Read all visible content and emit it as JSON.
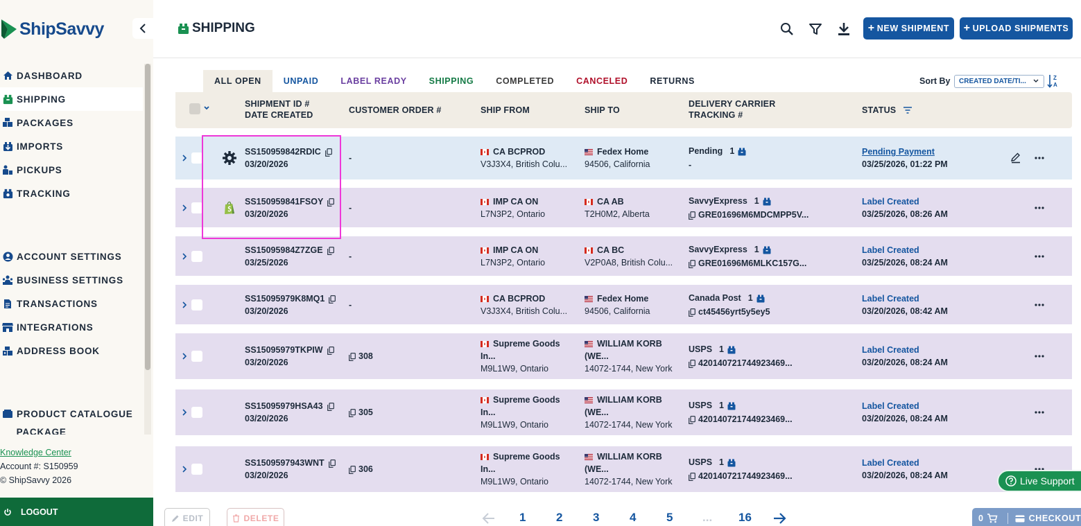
{
  "brand": {
    "name": "ShipSavvy"
  },
  "sidebar": {
    "items_top": [
      {
        "label": "DASHBOARD",
        "icon": "home-icon"
      },
      {
        "label": "SHIPPING",
        "icon": "shipping-box-icon",
        "active": true
      },
      {
        "label": "PACKAGES",
        "icon": "packages-icon"
      },
      {
        "label": "IMPORTS",
        "icon": "import-icon"
      },
      {
        "label": "PICKUPS",
        "icon": "pickup-icon"
      },
      {
        "label": "TRACKING",
        "icon": "tracking-icon"
      }
    ],
    "items_mid": [
      {
        "label": "ACCOUNT SETTINGS",
        "icon": "account-icon"
      },
      {
        "label": "BUSINESS SETTINGS",
        "icon": "business-icon"
      },
      {
        "label": "TRANSACTIONS",
        "icon": "document-icon"
      },
      {
        "label": "INTEGRATIONS",
        "icon": "store-icon"
      },
      {
        "label": "ADDRESS BOOK",
        "icon": "address-book-icon"
      }
    ],
    "items_bottom": [
      {
        "label": "PRODUCT CATALOGUE",
        "icon": "catalogue-icon"
      },
      {
        "label": "PACKAGE PREFERENCES",
        "icon": "preferences-icon"
      }
    ],
    "knowledge_center": "Knowledge Center",
    "account": "Account #: S150959",
    "copyright": "© ShipSavvy 2026",
    "logout": "LOGOUT"
  },
  "header": {
    "title": "SHIPPING",
    "new_shipment": "NEW SHIPMENT",
    "upload_shipments": "UPLOAD SHIPMENTS"
  },
  "tabs": [
    {
      "label": "ALL OPEN",
      "color": "#1d2a3a",
      "active": true
    },
    {
      "label": "UNPAID",
      "color": "#1556a0"
    },
    {
      "label": "LABEL READY",
      "color": "#6a3fa0"
    },
    {
      "label": "SHIPPING",
      "color": "#147a45"
    },
    {
      "label": "COMPLETED",
      "color": "#3a3a3a"
    },
    {
      "label": "CANCELED",
      "color": "#b0102a"
    },
    {
      "label": "RETURNS",
      "color": "#1d2a3a"
    }
  ],
  "sort": {
    "label": "Sort By",
    "value": "CREATED DATE/TI..."
  },
  "columns": {
    "shipment_id": "SHIPMENT ID #",
    "date_created": "DATE CREATED",
    "customer_order": "CUSTOMER ORDER #",
    "ship_from": "SHIP FROM",
    "ship_to": "SHIP TO",
    "carrier": "DELIVERY CARRIER",
    "tracking": "TRACKING #",
    "status": "STATUS"
  },
  "rows": [
    {
      "id": "SS150959842RDIC",
      "date": "03/20/2026",
      "order": "-",
      "order_copy": false,
      "source": "gear",
      "from_flag": "ca",
      "from_name": "CA BCPROD",
      "from_name2": "",
      "from_addr": "V3J3X4, British Colu...",
      "to_flag": "us",
      "to_name": "Fedex Home",
      "to_name2": "",
      "to_addr": "94506, California",
      "carrier": "Pending",
      "pkg_count": "1",
      "tracking": "-",
      "tracking_copy": false,
      "status": "Pending Payment",
      "status_date": "03/25/2026, 01:22 PM",
      "edit": true,
      "selected": true
    },
    {
      "id": "SS150959841FSOY",
      "date": "03/20/2026",
      "order": "-",
      "order_copy": false,
      "source": "shopify",
      "from_flag": "ca",
      "from_name": "IMP CA ON",
      "from_name2": "",
      "from_addr": "L7N3P2, Ontario",
      "to_flag": "ca",
      "to_name": "CA AB",
      "to_name2": "",
      "to_addr": "T2H0M2, Alberta",
      "carrier": "SavvyExpress",
      "pkg_count": "1",
      "tracking": "GRE01696M6MDCMPP5V...",
      "tracking_copy": true,
      "status": "Label Created",
      "status_date": "03/25/2026, 08:26 AM",
      "edit": false
    },
    {
      "id": "SS15095984Z7ZGE",
      "date": "03/25/2026",
      "order": "-",
      "order_copy": false,
      "source": "",
      "from_flag": "ca",
      "from_name": "IMP CA ON",
      "from_name2": "",
      "from_addr": "L7N3P2, Ontario",
      "to_flag": "ca",
      "to_name": "CA BC",
      "to_name2": "",
      "to_addr": "V2P0A8, British Colu...",
      "carrier": "SavvyExpress",
      "pkg_count": "1",
      "tracking": "GRE01696M6MLKC157G...",
      "tracking_copy": true,
      "status": "Label Created",
      "status_date": "03/25/2026, 08:24 AM",
      "edit": false
    },
    {
      "id": "SS15095979K8MQ1",
      "date": "03/20/2026",
      "order": "-",
      "order_copy": false,
      "source": "",
      "from_flag": "ca",
      "from_name": "CA BCPROD",
      "from_name2": "",
      "from_addr": "V3J3X4, British Colu...",
      "to_flag": "us",
      "to_name": "Fedex Home",
      "to_name2": "",
      "to_addr": "94506, California",
      "carrier": "Canada Post",
      "pkg_count": "1",
      "tracking": "ct45456yrt5y5ey5",
      "tracking_copy": true,
      "status": "Label Created",
      "status_date": "03/20/2026, 08:42 AM",
      "edit": false
    },
    {
      "id": "SS15095979TKPIW",
      "date": "03/20/2026",
      "order": "308",
      "order_copy": true,
      "source": "",
      "from_flag": "ca",
      "from_name": "Supreme Goods",
      "from_name2": "In...",
      "from_addr": "M9L1W9, Ontario",
      "to_flag": "us",
      "to_name": "WILLIAM KORB",
      "to_name2": "(WE...",
      "to_addr": "14072-1744, New York",
      "carrier": "USPS",
      "pkg_count": "1",
      "tracking": "420140721744923469...",
      "tracking_copy": true,
      "status": "Label Created",
      "status_date": "03/20/2026, 08:24 AM",
      "edit": false
    },
    {
      "id": "SS15095979HSA43",
      "date": "03/20/2026",
      "order": "305",
      "order_copy": true,
      "source": "",
      "from_flag": "ca",
      "from_name": "Supreme Goods",
      "from_name2": "In...",
      "from_addr": "M9L1W9, Ontario",
      "to_flag": "us",
      "to_name": "WILLIAM KORB",
      "to_name2": "(WE...",
      "to_addr": "14072-1744, New York",
      "carrier": "USPS",
      "pkg_count": "1",
      "tracking": "420140721744923469...",
      "tracking_copy": true,
      "status": "Label Created",
      "status_date": "03/20/2026, 08:24 AM",
      "edit": false
    },
    {
      "id": "SS1509597943WNT",
      "date": "03/20/2026",
      "order": "306",
      "order_copy": true,
      "source": "",
      "from_flag": "ca",
      "from_name": "Supreme Goods",
      "from_name2": "In...",
      "from_addr": "M9L1W9, Ontario",
      "to_flag": "us",
      "to_name": "WILLIAM KORB",
      "to_name2": "(WE...",
      "to_addr": "14072-1744, New York",
      "carrier": "USPS",
      "pkg_count": "1",
      "tracking": "420140721744923469...",
      "tracking_copy": true,
      "status": "Label Created",
      "status_date": "03/20/2026, 08:24 AM",
      "edit": false
    }
  ],
  "footer": {
    "edit": "EDIT",
    "delete": "DELETE",
    "pages": [
      "1",
      "2",
      "3",
      "4",
      "5",
      "...",
      "16"
    ],
    "cart_count": "0",
    "checkout": "CHECKOUT"
  },
  "live_support": "Live Support",
  "colors": {
    "brand_blue": "#1556a0",
    "brand_green": "#0f6b3a",
    "highlight": "#ee38d8"
  }
}
